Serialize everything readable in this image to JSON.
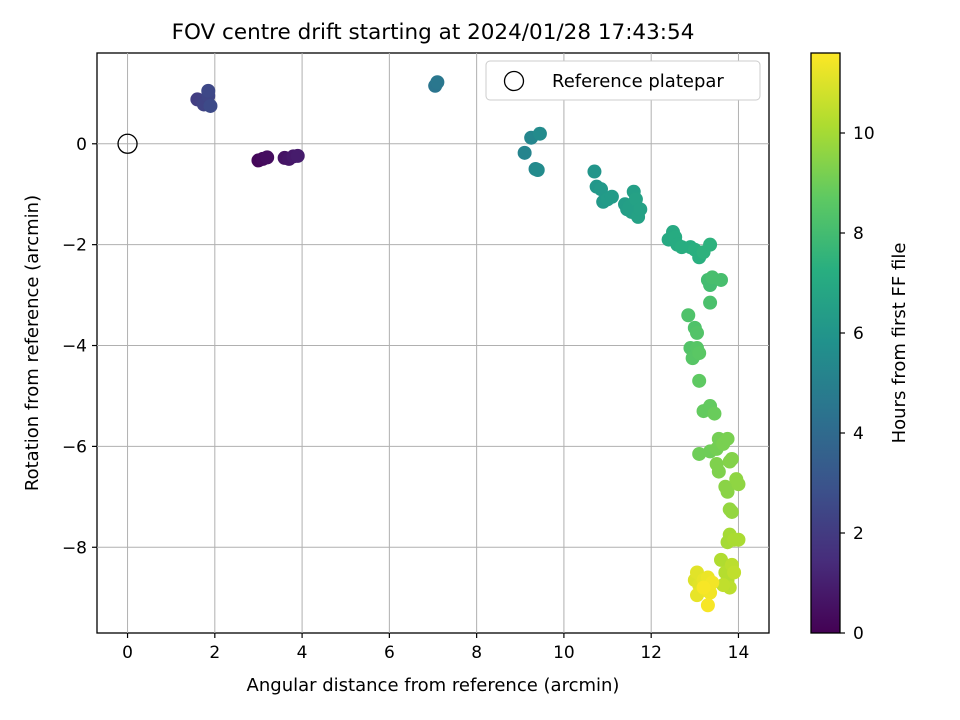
{
  "chart_data": {
    "type": "scatter",
    "title": "FOV centre drift starting at 2024/01/28 17:43:54",
    "xlabel": "Angular distance from reference (arcmin)",
    "ylabel": "Rotation from reference (arcmin)",
    "xlim": [
      -0.7,
      14.7
    ],
    "ylim": [
      -9.7,
      1.8
    ],
    "xticks": [
      0,
      2,
      4,
      6,
      8,
      10,
      12,
      14
    ],
    "yticks": [
      0,
      -2,
      -4,
      -6,
      -8
    ],
    "grid": true,
    "legend": {
      "placement": "top-right",
      "entries": [
        "Reference platepar"
      ]
    },
    "reference": {
      "x": 0,
      "y": 0,
      "label": "Reference platepar"
    },
    "colorbar": {
      "label": "Hours from first FF file",
      "range": [
        0,
        11.6
      ],
      "ticks": [
        0,
        2,
        4,
        6,
        8,
        10
      ],
      "colormap": "viridis"
    },
    "points": [
      {
        "x": 3.0,
        "y": -0.33,
        "h": 0.2
      },
      {
        "x": 3.1,
        "y": -0.3,
        "h": 0.3
      },
      {
        "x": 3.2,
        "y": -0.27,
        "h": 0.4
      },
      {
        "x": 3.6,
        "y": -0.28,
        "h": 0.6
      },
      {
        "x": 3.7,
        "y": -0.3,
        "h": 0.7
      },
      {
        "x": 3.8,
        "y": -0.25,
        "h": 0.8
      },
      {
        "x": 3.9,
        "y": -0.24,
        "h": 0.9
      },
      {
        "x": 1.6,
        "y": 0.88,
        "h": 2.1
      },
      {
        "x": 1.7,
        "y": 0.85,
        "h": 2.2
      },
      {
        "x": 1.75,
        "y": 0.78,
        "h": 2.3
      },
      {
        "x": 1.85,
        "y": 0.95,
        "h": 2.4
      },
      {
        "x": 1.85,
        "y": 1.05,
        "h": 2.5
      },
      {
        "x": 1.9,
        "y": 0.75,
        "h": 2.6
      },
      {
        "x": 7.05,
        "y": 1.15,
        "h": 4.5
      },
      {
        "x": 7.1,
        "y": 1.22,
        "h": 4.6
      },
      {
        "x": 9.1,
        "y": -0.18,
        "h": 5.2
      },
      {
        "x": 9.25,
        "y": 0.12,
        "h": 5.3
      },
      {
        "x": 9.35,
        "y": -0.5,
        "h": 5.4
      },
      {
        "x": 9.4,
        "y": -0.52,
        "h": 5.5
      },
      {
        "x": 9.45,
        "y": 0.2,
        "h": 5.5
      },
      {
        "x": 10.7,
        "y": -0.55,
        "h": 6.0
      },
      {
        "x": 10.75,
        "y": -0.85,
        "h": 6.1
      },
      {
        "x": 10.85,
        "y": -0.9,
        "h": 6.2
      },
      {
        "x": 10.9,
        "y": -1.15,
        "h": 6.2
      },
      {
        "x": 11.0,
        "y": -1.1,
        "h": 6.3
      },
      {
        "x": 11.1,
        "y": -1.05,
        "h": 6.3
      },
      {
        "x": 11.4,
        "y": -1.2,
        "h": 6.4
      },
      {
        "x": 11.45,
        "y": -1.3,
        "h": 6.4
      },
      {
        "x": 11.5,
        "y": -1.25,
        "h": 6.5
      },
      {
        "x": 11.55,
        "y": -1.35,
        "h": 6.5
      },
      {
        "x": 11.6,
        "y": -0.95,
        "h": 6.5
      },
      {
        "x": 11.65,
        "y": -1.1,
        "h": 6.6
      },
      {
        "x": 11.7,
        "y": -1.45,
        "h": 6.6
      },
      {
        "x": 11.75,
        "y": -1.3,
        "h": 6.6
      },
      {
        "x": 12.4,
        "y": -1.9,
        "h": 7.0
      },
      {
        "x": 12.5,
        "y": -1.75,
        "h": 7.0
      },
      {
        "x": 12.55,
        "y": -1.85,
        "h": 7.1
      },
      {
        "x": 12.6,
        "y": -2.0,
        "h": 7.1
      },
      {
        "x": 12.7,
        "y": -2.05,
        "h": 7.2
      },
      {
        "x": 12.9,
        "y": -2.05,
        "h": 7.2
      },
      {
        "x": 13.0,
        "y": -2.1,
        "h": 7.3
      },
      {
        "x": 13.1,
        "y": -2.25,
        "h": 7.3
      },
      {
        "x": 13.2,
        "y": -2.15,
        "h": 7.4
      },
      {
        "x": 13.35,
        "y": -2.0,
        "h": 7.4
      },
      {
        "x": 13.3,
        "y": -2.7,
        "h": 8.0
      },
      {
        "x": 13.35,
        "y": -2.8,
        "h": 8.0
      },
      {
        "x": 13.4,
        "y": -2.65,
        "h": 8.1
      },
      {
        "x": 13.6,
        "y": -2.7,
        "h": 8.1
      },
      {
        "x": 13.35,
        "y": -3.15,
        "h": 8.2
      },
      {
        "x": 12.85,
        "y": -3.4,
        "h": 8.3
      },
      {
        "x": 13.0,
        "y": -3.65,
        "h": 8.3
      },
      {
        "x": 13.05,
        "y": -3.75,
        "h": 8.4
      },
      {
        "x": 12.9,
        "y": -4.05,
        "h": 8.4
      },
      {
        "x": 12.95,
        "y": -4.25,
        "h": 8.5
      },
      {
        "x": 13.05,
        "y": -4.05,
        "h": 8.5
      },
      {
        "x": 13.1,
        "y": -4.15,
        "h": 8.6
      },
      {
        "x": 13.1,
        "y": -4.7,
        "h": 8.7
      },
      {
        "x": 13.2,
        "y": -5.3,
        "h": 8.8
      },
      {
        "x": 13.35,
        "y": -5.2,
        "h": 8.8
      },
      {
        "x": 13.45,
        "y": -5.35,
        "h": 8.9
      },
      {
        "x": 13.1,
        "y": -6.15,
        "h": 9.0
      },
      {
        "x": 13.35,
        "y": -6.1,
        "h": 9.0
      },
      {
        "x": 13.5,
        "y": -6.05,
        "h": 9.1
      },
      {
        "x": 13.55,
        "y": -5.85,
        "h": 9.1
      },
      {
        "x": 13.65,
        "y": -5.95,
        "h": 9.2
      },
      {
        "x": 13.75,
        "y": -5.85,
        "h": 9.2
      },
      {
        "x": 13.5,
        "y": -6.35,
        "h": 9.3
      },
      {
        "x": 13.55,
        "y": -6.5,
        "h": 9.3
      },
      {
        "x": 13.8,
        "y": -6.3,
        "h": 9.4
      },
      {
        "x": 13.85,
        "y": -6.25,
        "h": 9.4
      },
      {
        "x": 13.7,
        "y": -6.8,
        "h": 9.5
      },
      {
        "x": 13.75,
        "y": -6.9,
        "h": 9.5
      },
      {
        "x": 13.95,
        "y": -6.65,
        "h": 9.6
      },
      {
        "x": 14.0,
        "y": -6.75,
        "h": 9.6
      },
      {
        "x": 13.8,
        "y": -7.25,
        "h": 9.7
      },
      {
        "x": 13.85,
        "y": -7.3,
        "h": 9.7
      },
      {
        "x": 13.75,
        "y": -7.9,
        "h": 10.0
      },
      {
        "x": 13.8,
        "y": -7.75,
        "h": 10.0
      },
      {
        "x": 13.9,
        "y": -7.85,
        "h": 10.1
      },
      {
        "x": 14.0,
        "y": -7.85,
        "h": 10.1
      },
      {
        "x": 13.6,
        "y": -8.25,
        "h": 10.2
      },
      {
        "x": 13.7,
        "y": -8.5,
        "h": 10.3
      },
      {
        "x": 13.75,
        "y": -8.65,
        "h": 10.3
      },
      {
        "x": 13.8,
        "y": -8.8,
        "h": 10.4
      },
      {
        "x": 13.85,
        "y": -8.35,
        "h": 10.4
      },
      {
        "x": 13.9,
        "y": -8.5,
        "h": 10.5
      },
      {
        "x": 13.65,
        "y": -8.75,
        "h": 10.5
      },
      {
        "x": 13.0,
        "y": -8.65,
        "h": 11.0
      },
      {
        "x": 13.05,
        "y": -8.5,
        "h": 11.1
      },
      {
        "x": 13.1,
        "y": -8.75,
        "h": 11.1
      },
      {
        "x": 13.05,
        "y": -8.95,
        "h": 11.2
      },
      {
        "x": 13.2,
        "y": -8.65,
        "h": 11.2
      },
      {
        "x": 13.25,
        "y": -8.85,
        "h": 11.3
      },
      {
        "x": 13.3,
        "y": -8.6,
        "h": 11.3
      },
      {
        "x": 13.35,
        "y": -8.9,
        "h": 11.4
      },
      {
        "x": 13.4,
        "y": -8.7,
        "h": 11.4
      },
      {
        "x": 13.3,
        "y": -9.15,
        "h": 11.5
      },
      {
        "x": 13.2,
        "y": -8.8,
        "h": 11.5
      }
    ]
  }
}
